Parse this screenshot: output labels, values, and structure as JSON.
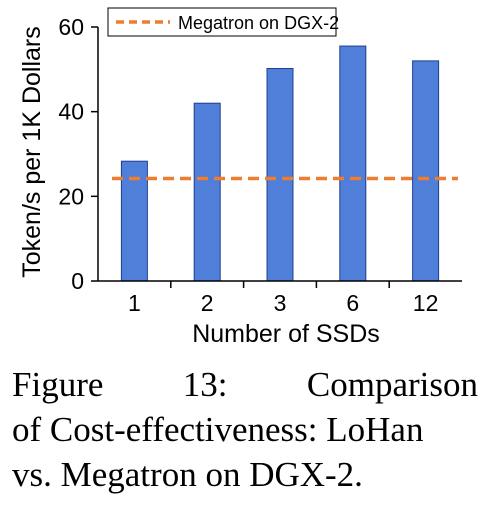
{
  "chart_data": {
    "type": "bar",
    "categories": [
      "1",
      "2",
      "3",
      "6",
      "12"
    ],
    "values": [
      28.3,
      42.0,
      50.2,
      55.5,
      52.0
    ],
    "xlabel": "Number of SSDs",
    "ylabel": "Token/s per 1K Dollars",
    "ylim": [
      0,
      60
    ],
    "yticks": [
      0,
      20,
      40,
      60
    ],
    "grid": false,
    "bar_color": "#4f7fd9",
    "reference_line": {
      "name": "Megatron on DGX-2",
      "value": 24.2,
      "color": "#ed7d31",
      "style": "dashed"
    },
    "legend": {
      "position": "top-left",
      "entries": [
        "Megatron on DGX-2"
      ]
    }
  },
  "caption": {
    "words": [
      "Figure",
      "13:",
      "Comparison"
    ],
    "line2": "of Cost-effectiveness: LoHan",
    "line3": "vs. Megatron on DGX-2."
  }
}
